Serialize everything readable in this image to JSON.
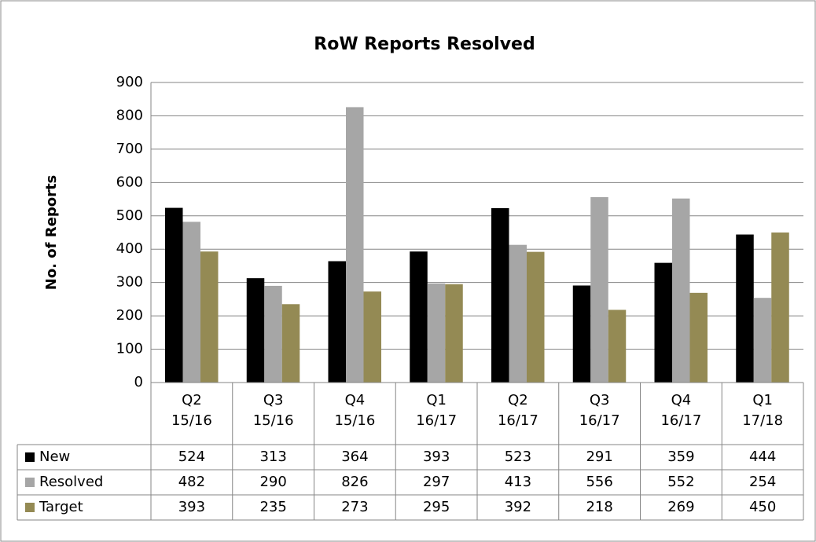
{
  "chart_data": {
    "type": "bar",
    "title": "RoW Reports Resolved",
    "y_label": "No. of Reports",
    "categories": [
      "Q2 15/16",
      "Q3 15/16",
      "Q4 15/16",
      "Q1 16/17",
      "Q2 16/17",
      "Q3 16/17",
      "Q4 16/17",
      "Q1 17/18"
    ],
    "series": [
      {
        "name": "New",
        "color": "#000000",
        "values": [
          524,
          313,
          364,
          393,
          523,
          291,
          359,
          444
        ]
      },
      {
        "name": "Resolved",
        "color": "#a6a6a6",
        "values": [
          482,
          290,
          826,
          297,
          413,
          556,
          552,
          254
        ]
      },
      {
        "name": "Target",
        "color": "#948a54",
        "values": [
          393,
          235,
          273,
          295,
          392,
          218,
          269,
          450
        ]
      }
    ],
    "ylim": [
      0,
      900
    ],
    "yticks": [
      0,
      100,
      200,
      300,
      400,
      500,
      600,
      700,
      800,
      900
    ],
    "grid": true
  }
}
